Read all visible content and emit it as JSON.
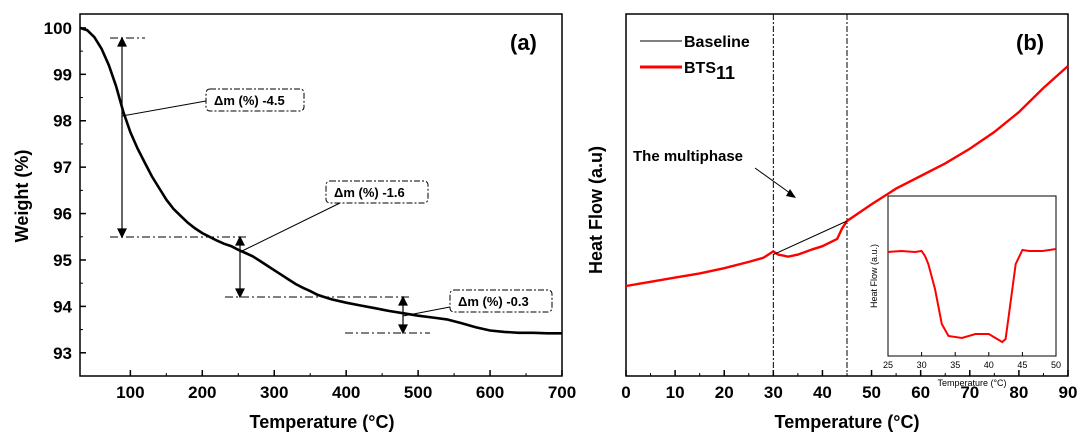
{
  "chart_data": [
    {
      "type": "line",
      "panel_label": "(a)",
      "xlabel": "Temperature (°C)",
      "ylabel": "Weight (%)",
      "xlim": [
        30,
        700
      ],
      "ylim": [
        92.5,
        100.3
      ],
      "x_ticks": [
        "100",
        "200",
        "300",
        "400",
        "500",
        "600",
        "700"
      ],
      "y_ticks": [
        "93",
        "94",
        "95",
        "96",
        "97",
        "98",
        "99",
        "100"
      ],
      "color": "#000000",
      "series": [
        {
          "x": [
            30,
            40,
            50,
            60,
            70,
            80,
            90,
            100,
            110,
            120,
            130,
            140,
            150,
            160,
            170,
            180,
            190,
            200,
            210,
            220,
            230,
            240,
            250,
            260,
            270,
            280,
            290,
            300,
            310,
            320,
            330,
            340,
            350,
            360,
            370,
            380,
            400,
            420,
            440,
            460,
            480,
            500,
            520,
            540,
            560,
            580,
            600,
            620,
            640,
            660,
            680,
            700
          ],
          "y": [
            100.0,
            99.95,
            99.8,
            99.55,
            99.2,
            98.75,
            98.2,
            97.75,
            97.4,
            97.1,
            96.8,
            96.55,
            96.3,
            96.1,
            95.95,
            95.8,
            95.68,
            95.58,
            95.5,
            95.42,
            95.35,
            95.3,
            95.22,
            95.15,
            95.08,
            94.98,
            94.88,
            94.78,
            94.68,
            94.58,
            94.48,
            94.4,
            94.33,
            94.25,
            94.2,
            94.15,
            94.08,
            94.02,
            93.96,
            93.9,
            93.85,
            93.8,
            93.76,
            93.72,
            93.64,
            93.55,
            93.48,
            93.45,
            93.43,
            93.43,
            93.42,
            93.42
          ]
        }
      ],
      "annotations": [
        {
          "text": "Δm (%) -4.5",
          "x": 90,
          "y": 98.2
        },
        {
          "text": "Δm (%) -1.6",
          "x": 255,
          "y": 95.2
        },
        {
          "text": "Δm (%) -0.3",
          "x": 480,
          "y": 93.85
        }
      ]
    },
    {
      "type": "line",
      "panel_label": "(b)",
      "xlabel": "Temperature (°C)",
      "ylabel": "Heat Flow (a.u)",
      "xlim": [
        0,
        90
      ],
      "x_ticks": [
        "0",
        "10",
        "20",
        "30",
        "40",
        "50",
        "60",
        "70",
        "80",
        "90"
      ],
      "legend": {
        "position": "top-left",
        "entries": [
          "Baseline",
          "BTS"
        ],
        "subscript": "11"
      },
      "annotation": "The multiphase",
      "vlines": [
        30,
        45
      ],
      "series": [
        {
          "name": "BTS11",
          "color": "#ff0000",
          "x": [
            0,
            5,
            10,
            15,
            20,
            25,
            28,
            30,
            31,
            32,
            33,
            35,
            38,
            40,
            43,
            44,
            45,
            50,
            55,
            60,
            65,
            70,
            75,
            80,
            85,
            90
          ],
          "y": [
            0,
            0.04,
            0.08,
            0.12,
            0.17,
            0.23,
            0.27,
            0.33,
            0.3,
            0.29,
            0.28,
            0.3,
            0.35,
            0.38,
            0.45,
            0.55,
            0.62,
            0.78,
            0.93,
            1.05,
            1.17,
            1.31,
            1.47,
            1.66,
            1.89,
            2.1
          ]
        },
        {
          "name": "Baseline",
          "color": "#000000",
          "x": [
            30,
            45
          ],
          "y": [
            0.3,
            0.62
          ]
        }
      ],
      "inset": {
        "xlabel": "Temperature (°C)",
        "ylabel": "Heat Flow (a.u.)",
        "xlim": [
          25,
          50
        ],
        "x_ticks": [
          "25",
          "30",
          "35",
          "40",
          "45",
          "50"
        ],
        "x": [
          25,
          27,
          29,
          30,
          30.5,
          31,
          32,
          33,
          34,
          36,
          38,
          40,
          41,
          42,
          42.5,
          43,
          44,
          45,
          46,
          48,
          50
        ],
        "y": [
          0.92,
          0.93,
          0.92,
          0.93,
          0.88,
          0.8,
          0.55,
          0.2,
          0.08,
          0.06,
          0.1,
          0.1,
          0.06,
          0.02,
          0.05,
          0.3,
          0.8,
          0.94,
          0.93,
          0.93,
          0.95
        ]
      }
    }
  ]
}
